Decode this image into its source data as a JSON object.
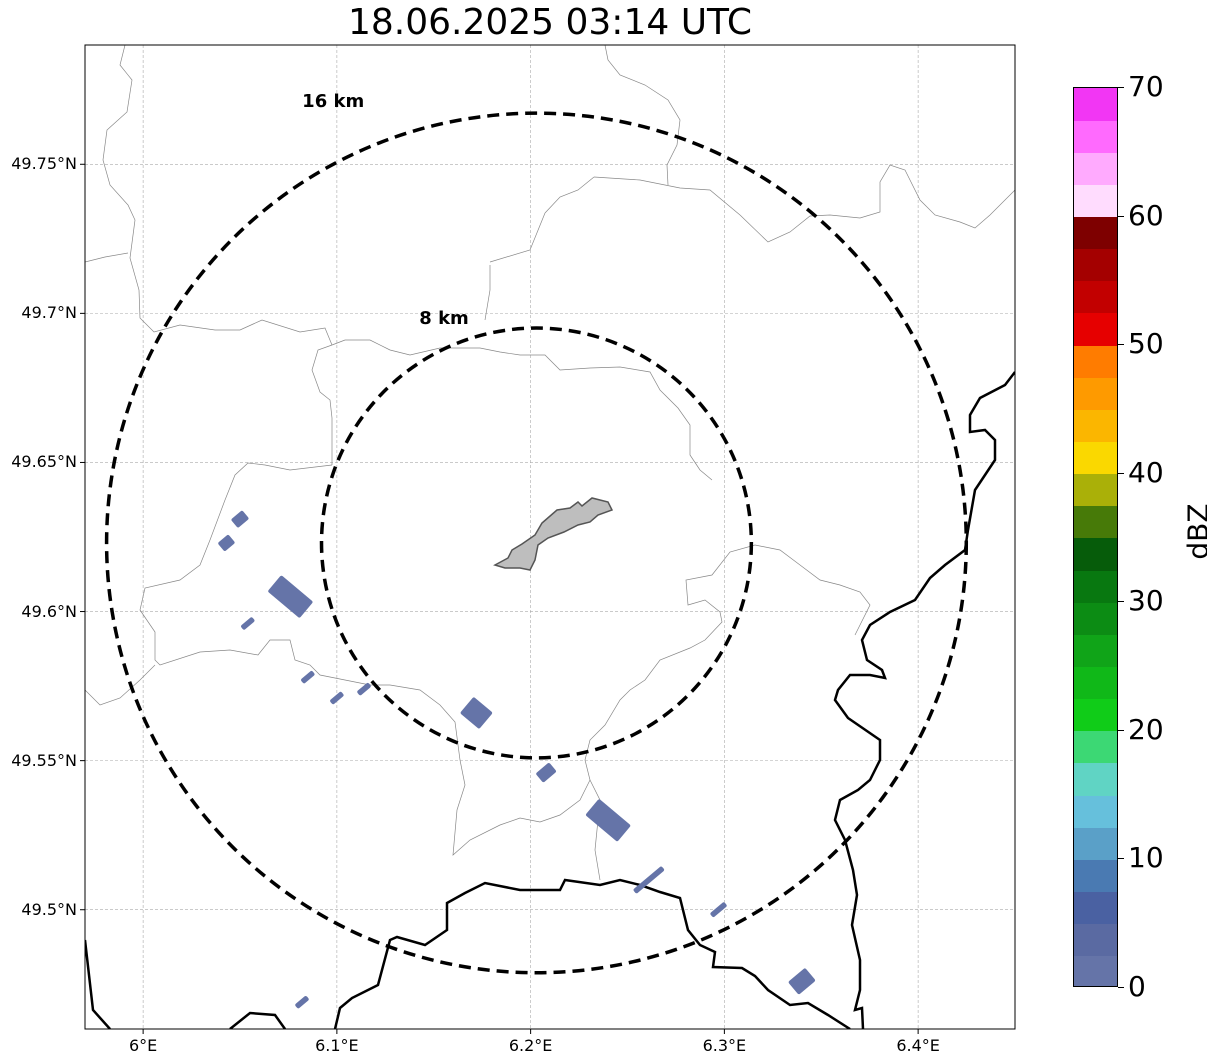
{
  "title": "18.06.2025 03:14 UTC",
  "rings": [
    {
      "label": "16 km",
      "radius_km": 16
    },
    {
      "label": "8 km",
      "radius_km": 8
    }
  ],
  "lat_ticks": [
    {
      "value": 49.75,
      "label": "49.75°N"
    },
    {
      "value": 49.7,
      "label": "49.7°N"
    },
    {
      "value": 49.65,
      "label": "49.65°N"
    },
    {
      "value": 49.6,
      "label": "49.6°N"
    },
    {
      "value": 49.55,
      "label": "49.55°N"
    },
    {
      "value": 49.5,
      "label": "49.5°N"
    }
  ],
  "lon_ticks": [
    {
      "value": 6.0,
      "label": "6°E"
    },
    {
      "value": 6.1,
      "label": "6.1°E"
    },
    {
      "value": 6.2,
      "label": "6.2°E"
    },
    {
      "value": 6.3,
      "label": "6.3°E"
    },
    {
      "value": 6.4,
      "label": "6.4°E"
    }
  ],
  "extent": {
    "lon_min": 5.97,
    "lon_max": 6.45,
    "lat_min": 49.46,
    "lat_max": 49.79
  },
  "radar_center": {
    "lon": 6.203,
    "lat": 49.623
  },
  "colorbar": {
    "unit": "dBZ",
    "vmin": 0,
    "vmax": 70,
    "ticks": [
      "0",
      "10",
      "20",
      "30",
      "40",
      "50",
      "60",
      "70"
    ],
    "colors": [
      "#6574a8",
      "#5a6aa2",
      "#4a61a2",
      "#4a7ab2",
      "#5aa0c8",
      "#66c0dc",
      "#60d4c4",
      "#3cd874",
      "#10cc18",
      "#10b818",
      "#10a418",
      "#0c8c14",
      "#087810",
      "#065c0a",
      "#477a08",
      "#aab008",
      "#fad800",
      "#fbb600",
      "#fe9a00",
      "#ff7c00",
      "#e60000",
      "#c20000",
      "#a40000",
      "#7e0000",
      "#ffdcfe",
      "#ffaafe",
      "#ff6afe",
      "#f236f4"
    ]
  },
  "echoes": [
    {
      "lon": 6.05,
      "lat": 49.631,
      "len_km": 1.6,
      "wid_km": 1.2,
      "angle": -40
    },
    {
      "lon": 6.043,
      "lat": 49.623,
      "len_km": 1.5,
      "wid_km": 1.2,
      "angle": -40
    },
    {
      "lon": 6.076,
      "lat": 49.605,
      "len_km": 4.5,
      "wid_km": 2.3,
      "angle": 40
    },
    {
      "lon": 6.054,
      "lat": 49.596,
      "len_km": 1.6,
      "wid_km": 0.6,
      "angle": -40
    },
    {
      "lon": 6.085,
      "lat": 49.578,
      "len_km": 1.6,
      "wid_km": 0.6,
      "angle": -40
    },
    {
      "lon": 6.1,
      "lat": 49.571,
      "len_km": 1.6,
      "wid_km": 0.6,
      "angle": -40
    },
    {
      "lon": 6.114,
      "lat": 49.574,
      "len_km": 1.6,
      "wid_km": 0.6,
      "angle": -40
    },
    {
      "lon": 6.172,
      "lat": 49.566,
      "len_km": 2.7,
      "wid_km": 2.3,
      "angle": 40
    },
    {
      "lon": 6.208,
      "lat": 49.546,
      "len_km": 1.9,
      "wid_km": 1.3,
      "angle": -40
    },
    {
      "lon": 6.24,
      "lat": 49.53,
      "len_km": 4.5,
      "wid_km": 2.3,
      "angle": 40
    },
    {
      "lon": 6.261,
      "lat": 49.51,
      "len_km": 4.0,
      "wid_km": 0.6,
      "angle": -40
    },
    {
      "lon": 6.297,
      "lat": 49.5,
      "len_km": 2.0,
      "wid_km": 0.6,
      "angle": -40
    },
    {
      "lon": 6.34,
      "lat": 49.476,
      "len_km": 2.4,
      "wid_km": 1.8,
      "angle": -40
    },
    {
      "lon": 6.082,
      "lat": 49.469,
      "len_km": 1.6,
      "wid_km": 0.6,
      "angle": -40
    }
  ]
}
